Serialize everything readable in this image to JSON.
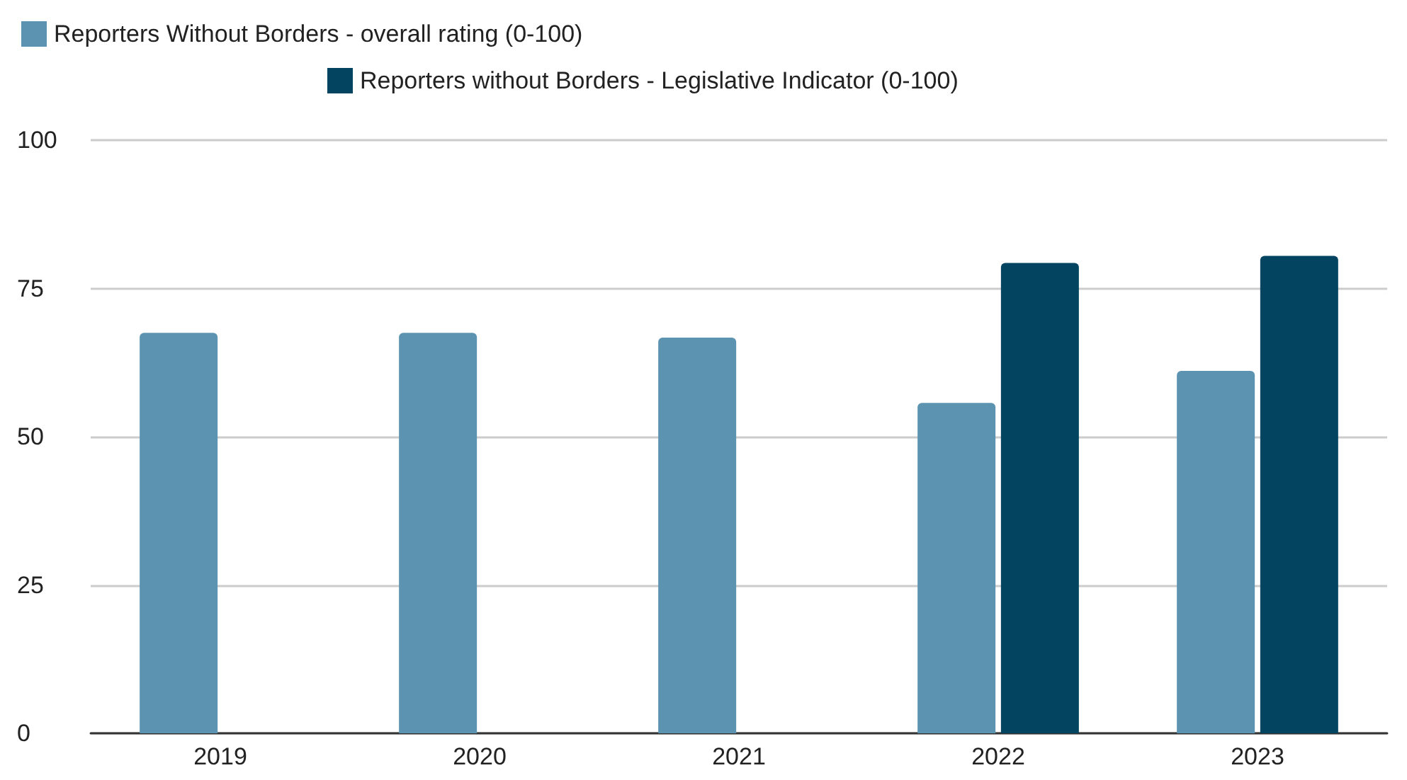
{
  "chart_data": {
    "type": "bar",
    "categories": [
      "2019",
      "2020",
      "2021",
      "2022",
      "2023"
    ],
    "series": [
      {
        "name": "Reporters Without Borders - overall rating (0-100)",
        "color": "#5b93b0",
        "values": [
          67.5,
          67.5,
          66.7,
          55.7,
          61.1
        ]
      },
      {
        "name": "Reporters without Borders - Legislative Indicator (0-100)",
        "color": "#034561",
        "values": [
          null,
          null,
          null,
          79.3,
          80.5
        ]
      }
    ],
    "ylim": [
      0,
      100
    ],
    "yticks": [
      0,
      25,
      50,
      75,
      100
    ],
    "grid": "y",
    "legend": "top"
  }
}
